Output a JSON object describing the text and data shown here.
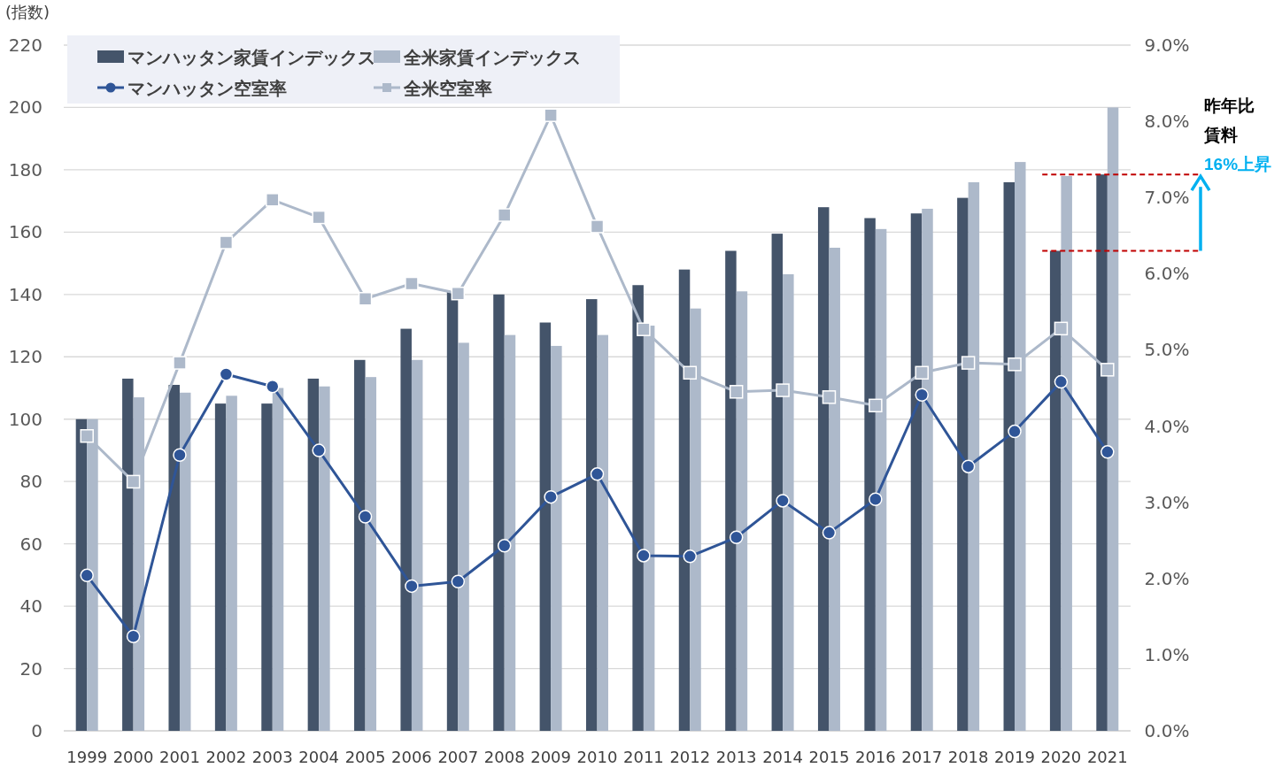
{
  "chart_data": {
    "type": "bar",
    "ylabel": "(指数)",
    "categories": [
      "1999",
      "2000",
      "2001",
      "2002",
      "2003",
      "2004",
      "2005",
      "2006",
      "2007",
      "2008",
      "2009",
      "2010",
      "2011",
      "2012",
      "2013",
      "2014",
      "2015",
      "2016",
      "2017",
      "2018",
      "2019",
      "2020",
      "2021"
    ],
    "series": [
      {
        "name": "マンハッタン家賃インデックス",
        "color": "#44546a",
        "values": [
          100,
          113,
          111,
          105,
          105,
          113,
          119,
          129,
          141,
          140,
          131,
          138.5,
          143,
          148,
          154,
          159.5,
          168,
          164.5,
          166,
          171,
          176,
          154,
          178.5
        ]
      },
      {
        "name": "全米家賃インデックス",
        "color": "#adb9ca",
        "values": [
          100,
          107,
          108.5,
          107.5,
          110,
          110.5,
          113.5,
          119,
          124.5,
          127,
          123.5,
          127,
          130,
          135.5,
          141,
          146.5,
          155,
          161,
          167.5,
          176,
          182.5,
          178,
          200
        ]
      },
      {
        "name": "マンハッタン空室率",
        "type": "line",
        "axis": "y2",
        "marker": "circle",
        "color": "#2f5597",
        "values": [
          2.04,
          1.24,
          3.62,
          4.68,
          4.52,
          3.68,
          2.81,
          1.9,
          1.96,
          2.43,
          3.07,
          3.37,
          2.3,
          2.29,
          2.54,
          3.02,
          2.6,
          3.04,
          4.41,
          3.47,
          3.93,
          4.58,
          3.66
        ]
      },
      {
        "name": "全米空室率",
        "type": "line",
        "axis": "y2",
        "marker": "square",
        "color": "#adb9ca",
        "values": [
          3.87,
          3.27,
          4.83,
          6.41,
          6.97,
          6.74,
          5.67,
          5.87,
          5.74,
          6.77,
          8.08,
          6.62,
          5.27,
          4.7,
          4.45,
          4.47,
          4.38,
          4.27,
          4.7,
          4.83,
          4.81,
          5.28,
          4.74
        ]
      }
    ],
    "ylim": [
      0,
      220
    ],
    "yticks": [
      0,
      20,
      40,
      60,
      80,
      100,
      120,
      140,
      160,
      180,
      200,
      220
    ],
    "y2lim": [
      0,
      9
    ],
    "y2ticks": [
      {
        "value": 0,
        "label": "0.0%"
      },
      {
        "value": 1,
        "label": "1.0%"
      },
      {
        "value": 2,
        "label": "2.0%"
      },
      {
        "value": 3,
        "label": "3.0%"
      },
      {
        "value": 4,
        "label": "4.0%"
      },
      {
        "value": 5,
        "label": "5.0%"
      },
      {
        "value": 6,
        "label": "6.0%"
      },
      {
        "value": 7,
        "label": "7.0%"
      },
      {
        "value": 8,
        "label": "8.0%"
      },
      {
        "value": 9,
        "label": "9.0%"
      }
    ],
    "grid": "y",
    "legend": "top left",
    "ref_lines": [
      {
        "axis": "y",
        "value": 178.5,
        "color": "#c00000",
        "line_style": "dashed"
      },
      {
        "axis": "y",
        "value": 154,
        "color": "#c00000",
        "line_style": "dashed"
      }
    ],
    "annotations": [
      "昨年比",
      "賃料",
      "16%上昇"
    ]
  }
}
